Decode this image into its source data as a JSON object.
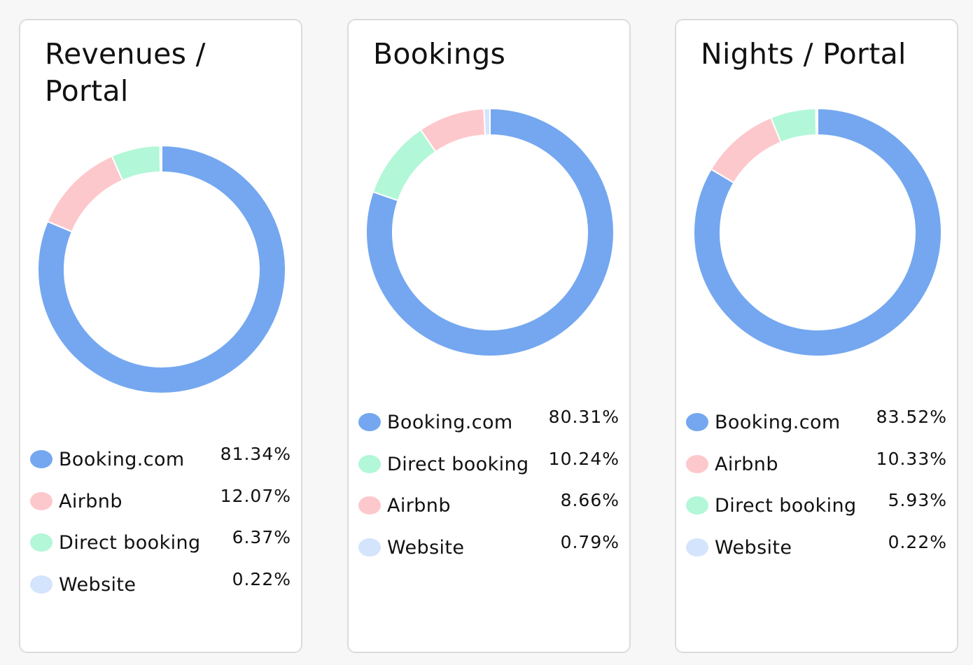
{
  "chart_data": [
    {
      "type": "pie",
      "title": "Revenues / Portal",
      "categories": [
        "Booking.com",
        "Airbnb",
        "Direct booking",
        "Website"
      ],
      "values": [
        81.34,
        12.07,
        6.37,
        0.22
      ],
      "labels": [
        "81.34%",
        "12.07%",
        "6.37%",
        "0.22%"
      ],
      "colors": [
        "#74a7ef",
        "#fdc8cc",
        "#b2f7d7",
        "#d4e4fc"
      ],
      "legend": "bottom"
    },
    {
      "type": "pie",
      "title": "Bookings",
      "categories": [
        "Booking.com",
        "Direct booking",
        "Airbnb",
        "Website"
      ],
      "values": [
        80.31,
        10.24,
        8.66,
        0.79
      ],
      "labels": [
        "80.31%",
        "10.24%",
        "8.66%",
        "0.79%"
      ],
      "colors": [
        "#74a7ef",
        "#b2f7d7",
        "#fdc8cc",
        "#d4e4fc"
      ],
      "legend": "bottom"
    },
    {
      "type": "pie",
      "title": "Nights / Portal",
      "categories": [
        "Booking.com",
        "Airbnb",
        "Direct booking",
        "Website"
      ],
      "values": [
        83.52,
        10.33,
        5.93,
        0.22
      ],
      "labels": [
        "83.52%",
        "10.33%",
        "5.93%",
        "0.22%"
      ],
      "colors": [
        "#74a7ef",
        "#fdc8cc",
        "#b2f7d7",
        "#d4e4fc"
      ],
      "legend": "bottom"
    }
  ]
}
